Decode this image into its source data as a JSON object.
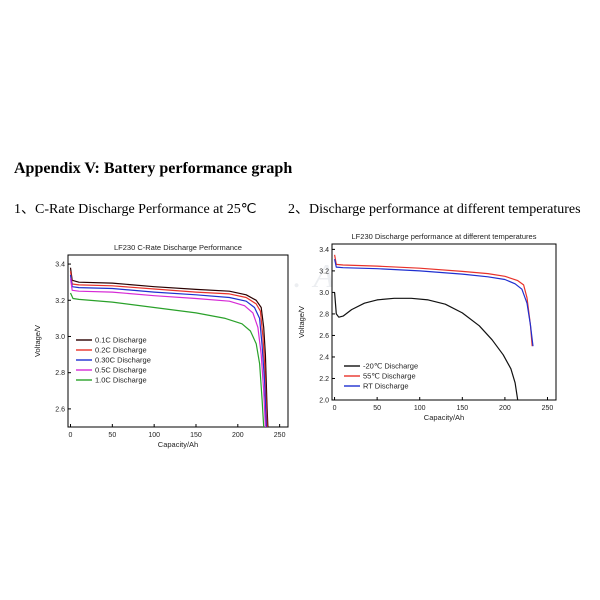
{
  "page": {
    "title": "Appendix V: Battery performance graph",
    "section1": "1、C-Rate Discharge Performance at 25℃",
    "section2": "2、Discharge performance at different temperatures"
  },
  "chart_data": [
    {
      "type": "line",
      "title": "LF230 C-Rate Discharge Performance",
      "xlabel": "Capacity/Ah",
      "ylabel": "Voltage/V",
      "xlim": [
        -3,
        260
      ],
      "ylim": [
        2.5,
        3.45
      ],
      "xticks": [
        0,
        50,
        100,
        150,
        200,
        250
      ],
      "yticks": [
        2.6,
        2.8,
        3.0,
        3.2,
        3.4
      ],
      "grid": false,
      "legend_position": "bottom-left",
      "series": [
        {
          "name": "0.1C  Discharge",
          "color": "#2a0000",
          "points": [
            [
              0,
              3.38
            ],
            [
              2,
              3.31
            ],
            [
              10,
              3.3
            ],
            [
              50,
              3.295
            ],
            [
              100,
              3.275
            ],
            [
              150,
              3.26
            ],
            [
              190,
              3.25
            ],
            [
              210,
              3.23
            ],
            [
              222,
              3.2
            ],
            [
              228,
              3.16
            ],
            [
              231,
              3.05
            ],
            [
              233,
              2.9
            ],
            [
              235,
              2.6
            ],
            [
              236,
              2.5
            ]
          ]
        },
        {
          "name": "0.2C  Discharge",
          "color": "#e8322a",
          "points": [
            [
              0,
              3.36
            ],
            [
              2,
              3.29
            ],
            [
              10,
              3.285
            ],
            [
              50,
              3.28
            ],
            [
              100,
              3.262
            ],
            [
              150,
              3.245
            ],
            [
              190,
              3.235
            ],
            [
              210,
              3.215
            ],
            [
              222,
              3.18
            ],
            [
              227,
              3.14
            ],
            [
              230,
              3.0
            ],
            [
              232,
              2.85
            ],
            [
              234,
              2.6
            ],
            [
              235,
              2.5
            ]
          ]
        },
        {
          "name": "0.30C Discharge",
          "color": "#1f2fd0",
          "points": [
            [
              0,
              3.34
            ],
            [
              2,
              3.275
            ],
            [
              10,
              3.27
            ],
            [
              50,
              3.265
            ],
            [
              100,
              3.245
            ],
            [
              150,
              3.23
            ],
            [
              190,
              3.215
            ],
            [
              210,
              3.195
            ],
            [
              220,
              3.16
            ],
            [
              226,
              3.1
            ],
            [
              229,
              2.95
            ],
            [
              232,
              2.75
            ],
            [
              234,
              2.5
            ]
          ]
        },
        {
          "name": "0.5C  Discharge",
          "color": "#d62ad6",
          "points": [
            [
              0,
              3.32
            ],
            [
              2,
              3.255
            ],
            [
              10,
              3.25
            ],
            [
              50,
              3.245
            ],
            [
              100,
              3.225
            ],
            [
              150,
              3.21
            ],
            [
              190,
              3.195
            ],
            [
              208,
              3.17
            ],
            [
              218,
              3.13
            ],
            [
              224,
              3.05
            ],
            [
              228,
              2.9
            ],
            [
              231,
              2.7
            ],
            [
              233,
              2.5
            ]
          ]
        },
        {
          "name": "1.0C  Discharge",
          "color": "#2aa12a",
          "points": [
            [
              0,
              3.24
            ],
            [
              3,
              3.21
            ],
            [
              10,
              3.205
            ],
            [
              50,
              3.19
            ],
            [
              100,
              3.16
            ],
            [
              150,
              3.13
            ],
            [
              185,
              3.1
            ],
            [
              205,
              3.07
            ],
            [
              215,
              3.03
            ],
            [
              222,
              2.96
            ],
            [
              226,
              2.85
            ],
            [
              229,
              2.65
            ],
            [
              231,
              2.5
            ]
          ]
        }
      ]
    },
    {
      "type": "line",
      "title": "LF230 Discharge performance at different temperatures",
      "xlabel": "Capacity/Ah",
      "ylabel": "Voltage/V",
      "xlim": [
        -3,
        260
      ],
      "ylim": [
        2.0,
        3.45
      ],
      "xticks": [
        0,
        50,
        100,
        150,
        200,
        250
      ],
      "yticks": [
        2.0,
        2.2,
        2.4,
        2.6,
        2.8,
        3.0,
        3.2,
        3.4
      ],
      "grid": false,
      "legend_position": "bottom-left",
      "series": [
        {
          "name": "-20℃ Discharge",
          "color": "#111111",
          "points": [
            [
              0,
              3.0
            ],
            [
              2,
              2.8
            ],
            [
              5,
              2.77
            ],
            [
              10,
              2.78
            ],
            [
              20,
              2.84
            ],
            [
              35,
              2.9
            ],
            [
              50,
              2.93
            ],
            [
              70,
              2.945
            ],
            [
              90,
              2.945
            ],
            [
              110,
              2.93
            ],
            [
              130,
              2.89
            ],
            [
              150,
              2.81
            ],
            [
              170,
              2.69
            ],
            [
              185,
              2.56
            ],
            [
              198,
              2.42
            ],
            [
              207,
              2.29
            ],
            [
              212,
              2.16
            ],
            [
              215,
              2.0
            ]
          ]
        },
        {
          "name": "55℃ Discharge",
          "color": "#e8322a",
          "points": [
            [
              0,
              3.35
            ],
            [
              2,
              3.26
            ],
            [
              10,
              3.255
            ],
            [
              50,
              3.245
            ],
            [
              100,
              3.225
            ],
            [
              150,
              3.195
            ],
            [
              180,
              3.175
            ],
            [
              200,
              3.15
            ],
            [
              215,
              3.11
            ],
            [
              222,
              3.07
            ],
            [
              226,
              2.95
            ],
            [
              230,
              2.7
            ],
            [
              232,
              2.5
            ]
          ]
        },
        {
          "name": "RT   Discharge",
          "color": "#1f2fd0",
          "points": [
            [
              0,
              3.31
            ],
            [
              2,
              3.235
            ],
            [
              10,
              3.23
            ],
            [
              50,
              3.22
            ],
            [
              100,
              3.2
            ],
            [
              150,
              3.17
            ],
            [
              180,
              3.145
            ],
            [
              200,
              3.12
            ],
            [
              212,
              3.08
            ],
            [
              220,
              3.03
            ],
            [
              226,
              2.9
            ],
            [
              230,
              2.7
            ],
            [
              233,
              2.5
            ]
          ]
        }
      ]
    }
  ]
}
